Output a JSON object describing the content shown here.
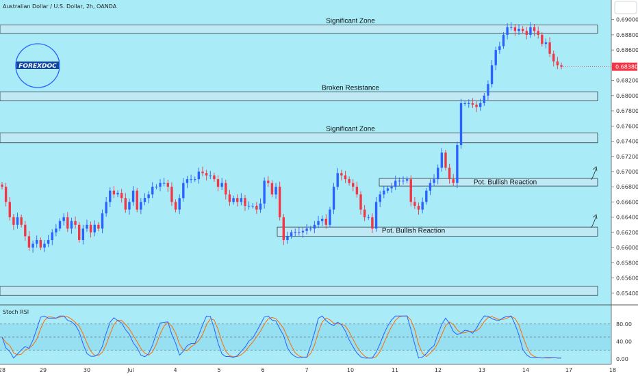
{
  "chart_data": {
    "type": "candlestick",
    "title": "Australian Dollar / U.S. Dollar, 2h, OANDA",
    "logo_text": "FOREXDOC",
    "y_ticks": [
      "0.69000",
      "0.68800",
      "0.68600",
      "0.68200",
      "0.68000",
      "0.67800",
      "0.67600",
      "0.67400",
      "0.67200",
      "0.67000",
      "0.66800",
      "0.66600",
      "0.66400",
      "0.66200",
      "0.66000",
      "0.65800",
      "0.65600",
      "0.65400"
    ],
    "y_tick_values": [
      0.69,
      0.688,
      0.686,
      0.682,
      0.68,
      0.678,
      0.676,
      0.674,
      0.672,
      0.67,
      0.668,
      0.666,
      0.664,
      0.662,
      0.66,
      0.658,
      0.656,
      0.654
    ],
    "ylim": [
      0.653,
      0.6915
    ],
    "current_price": "0.68380",
    "current_price_value": 0.6838,
    "x_ticks": [
      "28",
      "29",
      "30",
      "Jul",
      "4",
      "5",
      "6",
      "7",
      "10",
      "11",
      "12",
      "13",
      "14",
      "17",
      "18"
    ],
    "zones": [
      {
        "label": "Significant Zone",
        "top": 0.6893,
        "bottom": 0.6882
      },
      {
        "label": "Broken Resistance",
        "top": 0.6805,
        "bottom": 0.6793
      },
      {
        "label": "Significant Zone",
        "top": 0.6751,
        "bottom": 0.6738
      },
      {
        "label": "Pot. Bullish Reaction",
        "top": 0.6691,
        "bottom": 0.6681
      },
      {
        "label": "Pot. Bullish Reaction",
        "top": 0.6627,
        "bottom": 0.6615
      },
      {
        "label": "",
        "top": 0.6549,
        "bottom": 0.6537
      }
    ],
    "candles_close": [
      0.668,
      0.666,
      0.664,
      0.663,
      0.664,
      0.663,
      0.6615,
      0.66,
      0.6605,
      0.661,
      0.66,
      0.6605,
      0.661,
      0.662,
      0.6625,
      0.6635,
      0.664,
      0.6625,
      0.6635,
      0.663,
      0.661,
      0.6625,
      0.663,
      0.662,
      0.663,
      0.6625,
      0.6645,
      0.666,
      0.6675,
      0.667,
      0.6672,
      0.6665,
      0.665,
      0.666,
      0.6675,
      0.665,
      0.666,
      0.6665,
      0.667,
      0.668,
      0.668,
      0.6685,
      0.6685,
      0.668,
      0.666,
      0.665,
      0.6665,
      0.6685,
      0.669,
      0.669,
      0.669,
      0.67,
      0.6698,
      0.6695,
      0.6695,
      0.669,
      0.668,
      0.6685,
      0.667,
      0.666,
      0.6665,
      0.666,
      0.6665,
      0.6655,
      0.6655,
      0.6655,
      0.665,
      0.6658,
      0.6688,
      0.6685,
      0.667,
      0.668,
      0.664,
      0.661,
      0.6615,
      0.662,
      0.662,
      0.662,
      0.6622,
      0.6625,
      0.6625,
      0.663,
      0.6635,
      0.6638,
      0.663,
      0.665,
      0.668,
      0.6698,
      0.6695,
      0.669,
      0.6685,
      0.668,
      0.667,
      0.665,
      0.664,
      0.664,
      0.6625,
      0.666,
      0.667,
      0.6675,
      0.6678,
      0.668,
      0.6688,
      0.6688,
      0.6688,
      0.669,
      0.666,
      0.6655,
      0.665,
      0.666,
      0.6675,
      0.6685,
      0.669,
      0.6705,
      0.6725,
      0.6705,
      0.669,
      0.6685,
      0.6735,
      0.679,
      0.679,
      0.679,
      0.6788,
      0.6785,
      0.679,
      0.68,
      0.6815,
      0.684,
      0.686,
      0.6865,
      0.688,
      0.689,
      0.689,
      0.6885,
      0.6888,
      0.6885,
      0.688,
      0.689,
      0.6885,
      0.688,
      0.6868,
      0.687,
      0.6855,
      0.6845,
      0.684,
      0.6838
    ],
    "indicator": {
      "name": "Stoch RSI",
      "ylim": [
        0,
        100
      ],
      "y_ticks": [
        "80.00",
        "40.00",
        "0.00"
      ],
      "y_tick_values": [
        80,
        40,
        0
      ],
      "bands": [
        80,
        20
      ],
      "k_color": "#2962ff",
      "d_color": "#ff6d00"
    },
    "colors": {
      "background": "#a9ebf6",
      "up": "#2962ff",
      "down": "#f23645",
      "zone_fill": "#bfe9f5",
      "price_badge": "#f23645"
    }
  }
}
